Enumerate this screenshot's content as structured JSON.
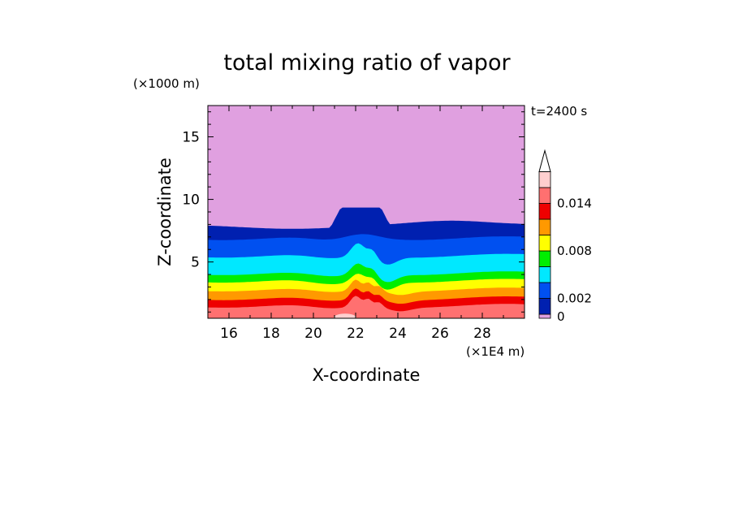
{
  "chart_data": {
    "type": "contour",
    "title": "total mixing ratio of vapor",
    "xlabel": "X-coordinate",
    "ylabel": "Z-coordinate",
    "x_unit": "(×1E4 m)",
    "y_unit": "(×1000 m)",
    "time_label": "t=2400 s",
    "xlim": [
      15,
      30
    ],
    "ylim": [
      0.5,
      17.5
    ],
    "x_ticks": [
      16,
      18,
      20,
      22,
      24,
      26,
      28
    ],
    "y_ticks": [
      5,
      10,
      15
    ],
    "colorbar": {
      "levels": [
        0,
        0.001,
        0.002,
        0.004,
        0.006,
        0.008,
        0.01,
        0.012,
        0.014,
        0.016
      ],
      "colors": [
        "#e0a0e0",
        "#0020b0",
        "#0050f0",
        "#00e8ff",
        "#00ee00",
        "#ffff00",
        "#ff9900",
        "#ee0000",
        "#ff7070",
        "#ffcfcf"
      ],
      "tick_labels": [
        "0",
        "0.002",
        "0.008",
        "0.014"
      ],
      "extend": "max"
    },
    "contour_levels_km": {
      "top_of_vapor_far": 8.0,
      "top_of_vapor_mountain": 9.3,
      "band_tops_far_field": [
        8.0,
        6.9,
        5.5,
        4.1,
        3.5,
        2.8,
        2.1,
        1.5
      ]
    }
  }
}
